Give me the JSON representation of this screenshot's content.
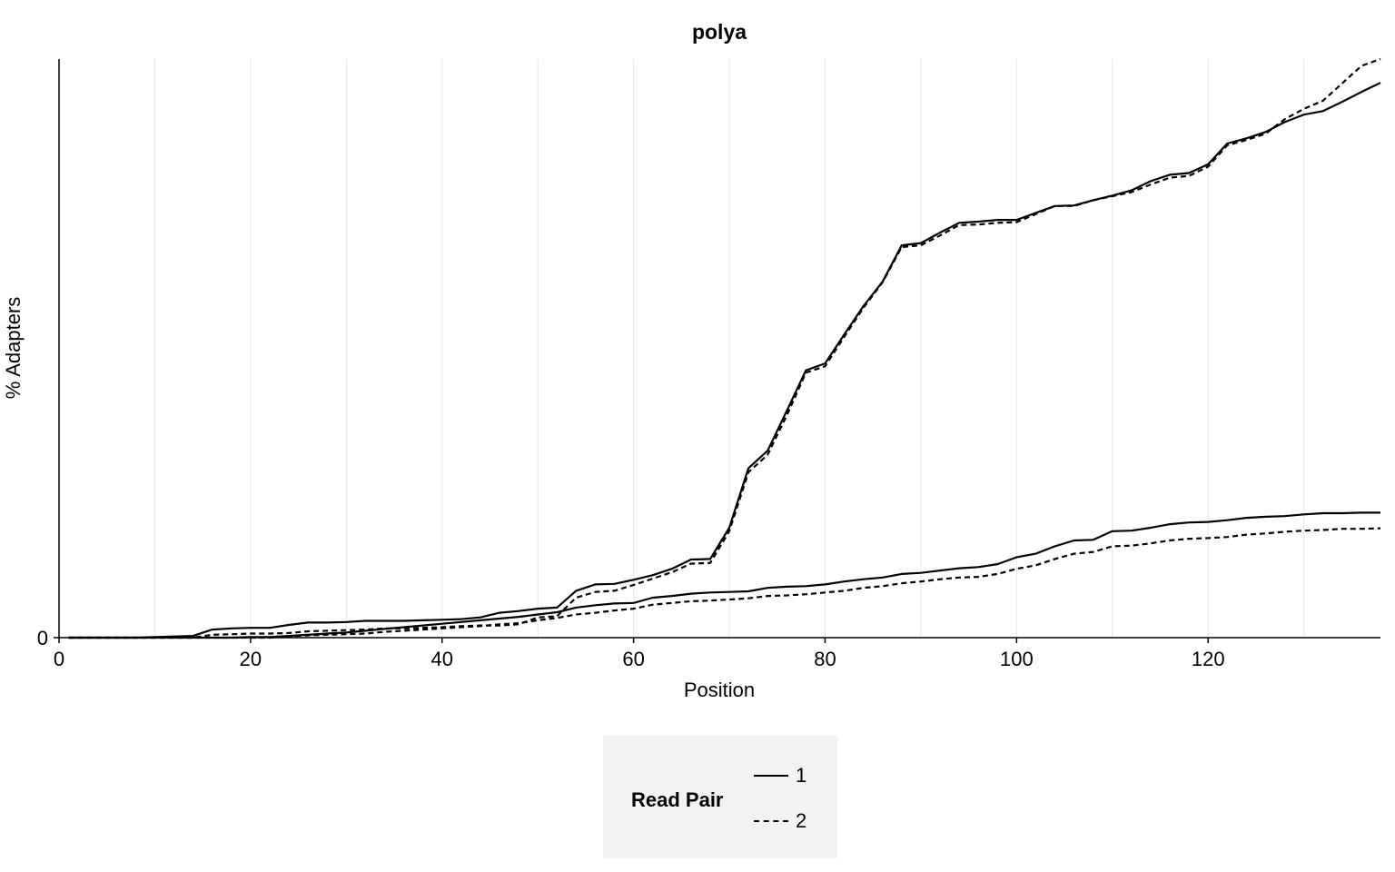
{
  "chart_data": {
    "type": "line",
    "title": "polya",
    "xlabel": "Position",
    "ylabel": "% Adapters",
    "xlim": [
      0,
      138
    ],
    "ylim": [
      0,
      100
    ],
    "x_ticks": [
      "0",
      "20",
      "40",
      "60",
      "80",
      "100",
      "120"
    ],
    "y_ticks": [
      "0"
    ],
    "grid": "vertical",
    "legend": {
      "title": "Read Pair",
      "placement": "bottom",
      "entries": [
        {
          "label": "1",
          "style": "solid"
        },
        {
          "label": "2",
          "style": "dashed"
        }
      ]
    },
    "series": [
      {
        "read_pair": "1",
        "style": "solid",
        "x": [
          1,
          8,
          14,
          16,
          18,
          20,
          22,
          24,
          26,
          28,
          30,
          32,
          34,
          36,
          38,
          40,
          42,
          44,
          46,
          48,
          50,
          52,
          54,
          56,
          58,
          60,
          62,
          64,
          66,
          68,
          70,
          72,
          74,
          76,
          78,
          80,
          82,
          84,
          86,
          88,
          90,
          92,
          94,
          96,
          98,
          100,
          102,
          104,
          106,
          108,
          110,
          112,
          114,
          116,
          118,
          120,
          122,
          124,
          126,
          128,
          130,
          132,
          134,
          136,
          138
        ],
        "y": [
          0,
          0,
          0.3,
          1.4,
          1.6,
          1.7,
          1.7,
          2.2,
          2.6,
          2.6,
          2.7,
          2.9,
          2.9,
          2.9,
          3.0,
          3.1,
          3.2,
          3.5,
          4.3,
          4.6,
          5.0,
          5.2,
          8.1,
          9.2,
          9.3,
          10.0,
          10.8,
          11.9,
          13.5,
          13.6,
          19.0,
          29.3,
          32.3,
          39.2,
          46.2,
          47.4,
          52.4,
          57.3,
          61.5,
          67.8,
          68.2,
          70.0,
          71.7,
          71.9,
          72.2,
          72.2,
          73.4,
          74.6,
          74.7,
          75.6,
          76.4,
          77.3,
          78.9,
          80.0,
          80.3,
          81.8,
          85.4,
          86.3,
          87.4,
          89.1,
          90.4,
          91.0,
          92.6,
          94.3,
          95.9
        ]
      },
      {
        "read_pair": "1",
        "style": "solid",
        "x": [
          1,
          8,
          14,
          16,
          18,
          20,
          22,
          24,
          26,
          28,
          30,
          32,
          34,
          36,
          38,
          40,
          42,
          44,
          46,
          48,
          50,
          52,
          54,
          56,
          58,
          60,
          62,
          64,
          66,
          68,
          70,
          72,
          74,
          76,
          78,
          80,
          82,
          84,
          86,
          88,
          90,
          92,
          94,
          96,
          98,
          100,
          102,
          104,
          106,
          108,
          110,
          112,
          114,
          116,
          118,
          120,
          122,
          124,
          126,
          128,
          130,
          132,
          134,
          136,
          138
        ],
        "y": [
          0,
          0,
          0,
          0,
          0,
          0.1,
          0.1,
          0.3,
          0.5,
          0.7,
          0.9,
          1.2,
          1.5,
          1.8,
          2.1,
          2.4,
          2.7,
          3.0,
          3.3,
          3.6,
          4.0,
          4.4,
          5.2,
          5.6,
          5.9,
          6.0,
          6.9,
          7.2,
          7.6,
          7.8,
          7.9,
          8.0,
          8.6,
          8.8,
          8.9,
          9.2,
          9.7,
          10.1,
          10.4,
          11.0,
          11.2,
          11.6,
          12.0,
          12.2,
          12.7,
          13.9,
          14.5,
          15.8,
          16.8,
          16.9,
          18.4,
          18.5,
          19.0,
          19.6,
          19.9,
          20.0,
          20.3,
          20.7,
          20.9,
          21.0,
          21.3,
          21.5,
          21.5,
          21.6,
          21.6
        ]
      },
      {
        "read_pair": "2",
        "style": "dashed",
        "x": [
          1,
          8,
          14,
          16,
          18,
          20,
          22,
          24,
          26,
          28,
          30,
          32,
          34,
          36,
          38,
          40,
          42,
          44,
          46,
          48,
          50,
          52,
          54,
          56,
          58,
          60,
          62,
          64,
          66,
          68,
          70,
          72,
          74,
          76,
          78,
          80,
          82,
          84,
          86,
          88,
          90,
          92,
          94,
          96,
          98,
          100,
          102,
          104,
          106,
          108,
          110,
          112,
          114,
          116,
          118,
          120,
          122,
          124,
          126,
          128,
          130,
          132,
          134,
          136,
          138
        ],
        "y": [
          0,
          0,
          0,
          0.5,
          0.6,
          0.7,
          0.7,
          0.8,
          1.1,
          1.2,
          1.3,
          1.4,
          1.6,
          1.6,
          1.7,
          1.8,
          2.0,
          2.1,
          2.1,
          2.3,
          3.5,
          3.7,
          6.9,
          7.9,
          8.1,
          9.1,
          10.2,
          11.3,
          12.8,
          12.9,
          18.4,
          28.6,
          31.6,
          38.4,
          45.8,
          46.9,
          52.0,
          57.0,
          61.4,
          67.5,
          67.8,
          69.5,
          71.3,
          71.4,
          71.7,
          71.8,
          73.2,
          74.6,
          74.6,
          75.6,
          76.3,
          77.0,
          78.3,
          79.5,
          79.8,
          81.4,
          85.1,
          86.0,
          87.1,
          89.6,
          91.4,
          92.8,
          95.8,
          98.8,
          100.5
        ]
      },
      {
        "read_pair": "2",
        "style": "dashed",
        "x": [
          1,
          8,
          14,
          16,
          18,
          20,
          22,
          24,
          26,
          28,
          30,
          32,
          34,
          36,
          38,
          40,
          42,
          44,
          46,
          48,
          50,
          52,
          54,
          56,
          58,
          60,
          62,
          64,
          66,
          68,
          70,
          72,
          74,
          76,
          78,
          80,
          82,
          84,
          86,
          88,
          90,
          92,
          94,
          96,
          98,
          100,
          102,
          104,
          106,
          108,
          110,
          112,
          114,
          116,
          118,
          120,
          122,
          124,
          126,
          128,
          130,
          132,
          134,
          136,
          138
        ],
        "y": [
          0,
          0,
          0,
          0,
          0,
          0,
          0,
          0.2,
          0.4,
          0.5,
          0.6,
          0.7,
          1.0,
          1.2,
          1.4,
          1.6,
          1.8,
          2.0,
          2.3,
          2.5,
          3.0,
          3.4,
          4.0,
          4.3,
          4.7,
          5.0,
          5.7,
          6.0,
          6.3,
          6.4,
          6.6,
          6.8,
          7.2,
          7.3,
          7.5,
          7.8,
          8.1,
          8.6,
          8.9,
          9.4,
          9.7,
          10.1,
          10.4,
          10.5,
          11.0,
          11.9,
          12.5,
          13.6,
          14.5,
          14.8,
          15.8,
          15.9,
          16.3,
          16.8,
          17.1,
          17.2,
          17.4,
          17.8,
          18.0,
          18.3,
          18.5,
          18.6,
          18.8,
          18.8,
          18.9
        ]
      }
    ]
  }
}
